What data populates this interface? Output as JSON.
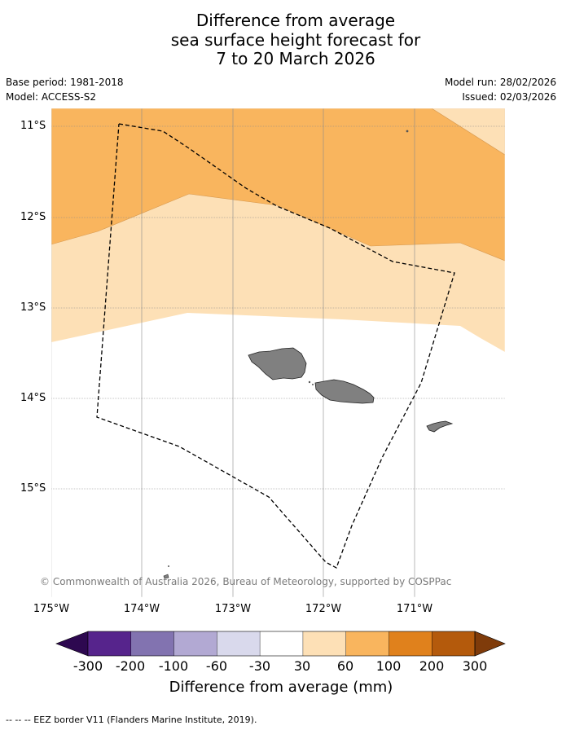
{
  "title": {
    "line1": "Difference from average",
    "line2": "sea surface height forecast for",
    "line3": "7 to 20 March 2026"
  },
  "meta": {
    "base_period": "Base period: 1981-2018",
    "model": "Model: ACCESS-S2",
    "model_run": "Model run: 28/02/2026",
    "issued": "Issued: 02/03/2026"
  },
  "map": {
    "lat_labels": [
      "11°S",
      "12°S",
      "13°S",
      "14°S",
      "15°S"
    ],
    "lon_labels": [
      "175°W",
      "174°W",
      "173°W",
      "172°W",
      "171°W"
    ],
    "copyright": "© Commonwealth of Australia 2026, Bureau of Meteorology, supported by COSPPac"
  },
  "colorbar": {
    "ticks": [
      "-300",
      "-200",
      "-100",
      "-60",
      "-30",
      "30",
      "60",
      "100",
      "200",
      "300"
    ],
    "colors": [
      "#2d0850",
      "#56248c",
      "#8273b0",
      "#b2a9d3",
      "#d9d9ec",
      "#ffffff",
      "#fde0b6",
      "#f9b55e",
      "#e0811c",
      "#b45a0c",
      "#7f3b0a"
    ],
    "label": "Difference from average (mm)"
  },
  "footer": "--  --  -- EEZ border V11 (Flanders Marine Institute, 2019)."
}
